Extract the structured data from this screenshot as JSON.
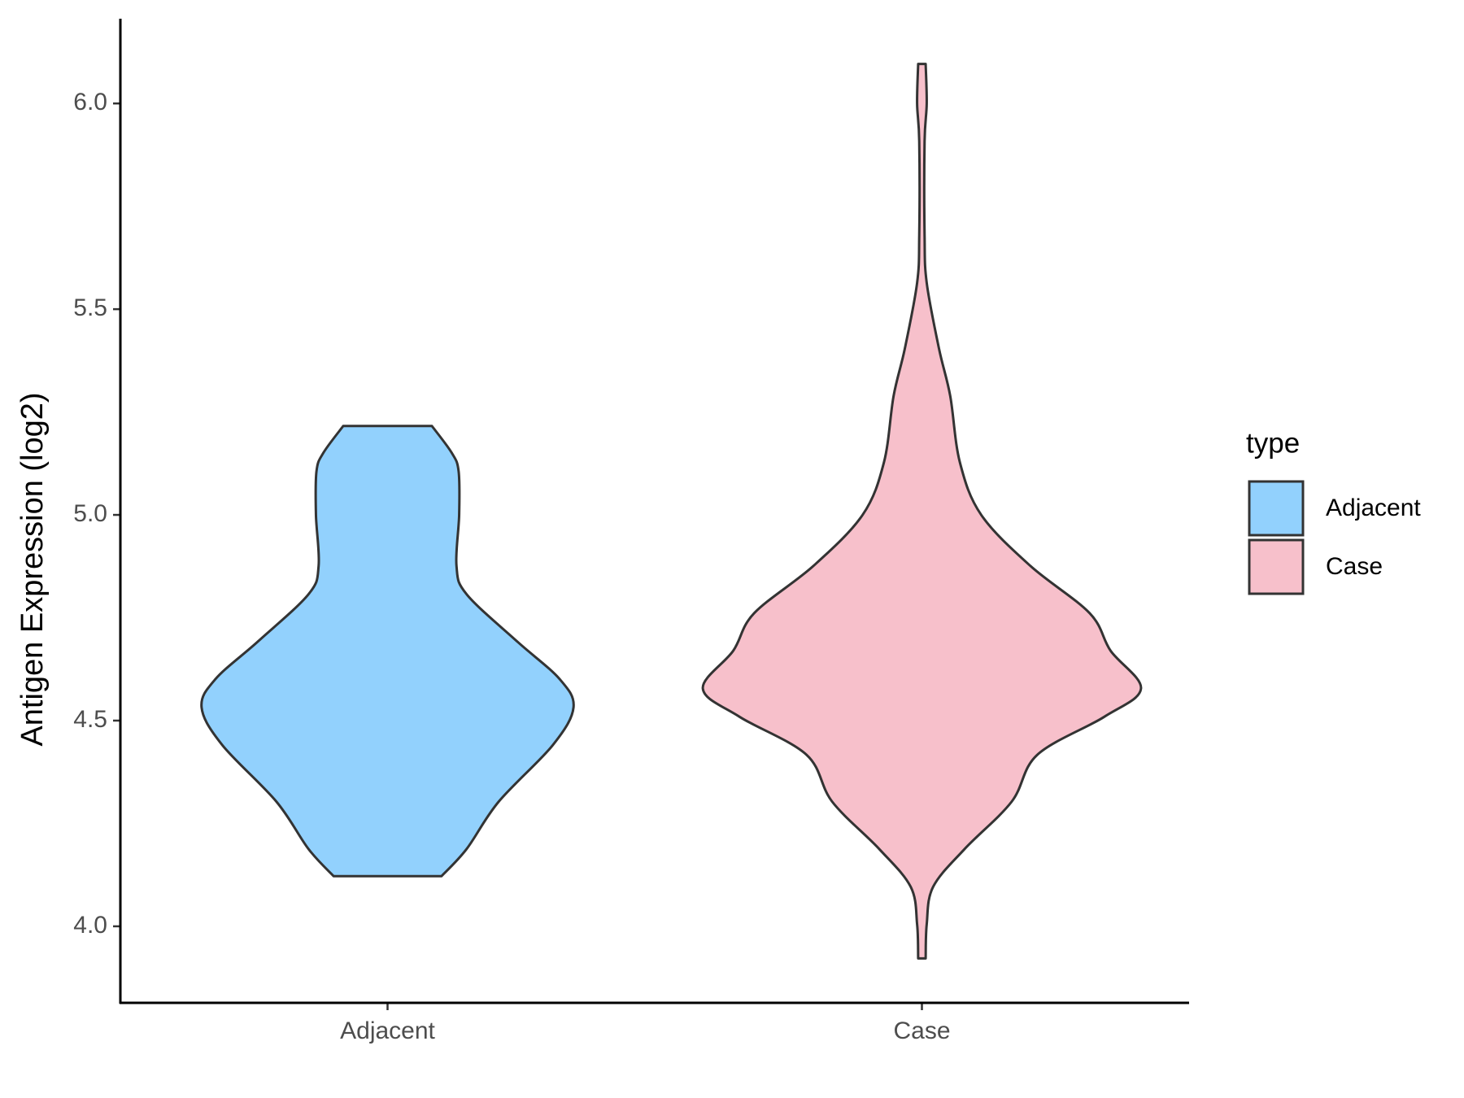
{
  "chart_data": {
    "type": "violin",
    "y_label": "Antigen Expression (log2)",
    "categories": [
      "Adjacent",
      "Case"
    ],
    "ylim": [
      3.814,
      6.206
    ],
    "yticks": [
      {
        "value": 4,
        "label": "4.0"
      },
      4.5,
      {
        "value": 5,
        "label": "5.0"
      },
      5.5,
      {
        "value": 6,
        "label": "6.0"
      }
    ],
    "legend_title": "type",
    "legend_position": "right",
    "series": [
      {
        "name": "Adjacent",
        "color": "#92d1fd",
        "y": [
          4.122,
          4.188,
          4.303,
          4.44,
          4.532,
          4.601,
          4.693,
          4.807,
          4.876,
          5.0,
          5.106,
          5.151,
          5.216
        ],
        "half_width": [
          0.101,
          0.148,
          0.208,
          0.309,
          0.348,
          0.322,
          0.242,
          0.148,
          0.129,
          0.134,
          0.133,
          0.12,
          0.083
        ]
      },
      {
        "name": "Case",
        "color": "#f7c0cb",
        "y": [
          3.922,
          4.005,
          4.096,
          4.188,
          4.303,
          4.417,
          4.509,
          4.578,
          4.67,
          4.761,
          4.876,
          5.0,
          5.128,
          5.289,
          5.404,
          5.564,
          5.679,
          5.908,
          6.0,
          6.096
        ],
        "half_width": [
          0.007,
          0.009,
          0.021,
          0.08,
          0.168,
          0.216,
          0.341,
          0.41,
          0.353,
          0.314,
          0.203,
          0.111,
          0.071,
          0.053,
          0.032,
          0.009,
          0.005,
          0.005,
          0.009,
          0.007
        ]
      }
    ]
  }
}
